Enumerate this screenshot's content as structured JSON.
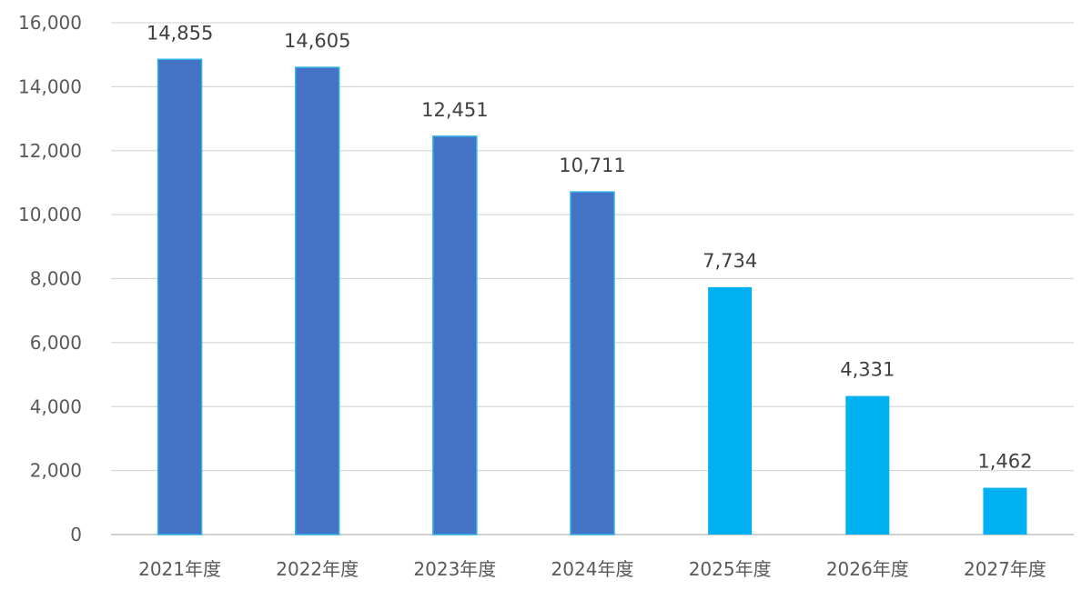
{
  "chart_data": {
    "type": "bar",
    "title": "",
    "xlabel": "",
    "ylabel": "",
    "categories": [
      "2021年度",
      "2022年度",
      "2023年度",
      "2024年度",
      "2025年度",
      "2026年度",
      "2027年度"
    ],
    "values": [
      14855,
      14605,
      12451,
      10711,
      7734,
      4331,
      1462
    ],
    "data_labels": [
      "14,855",
      "14,605",
      "12,451",
      "10,711",
      "7,734",
      "4,331",
      "1,462"
    ],
    "y_ticks": [
      "0",
      "2,000",
      "4,000",
      "6,000",
      "8,000",
      "10,000",
      "12,000",
      "14,000",
      "16,000"
    ],
    "ylim": [
      0,
      16000
    ],
    "grid": true,
    "legend": "none",
    "colors": {
      "actual": "#4472c4",
      "actual_outline": "#2fb3ea",
      "forecast": "#00b0f0",
      "gridline": "#d9d9d9"
    },
    "bar_styles": [
      "actual",
      "actual",
      "actual",
      "actual",
      "forecast",
      "forecast",
      "forecast"
    ]
  }
}
